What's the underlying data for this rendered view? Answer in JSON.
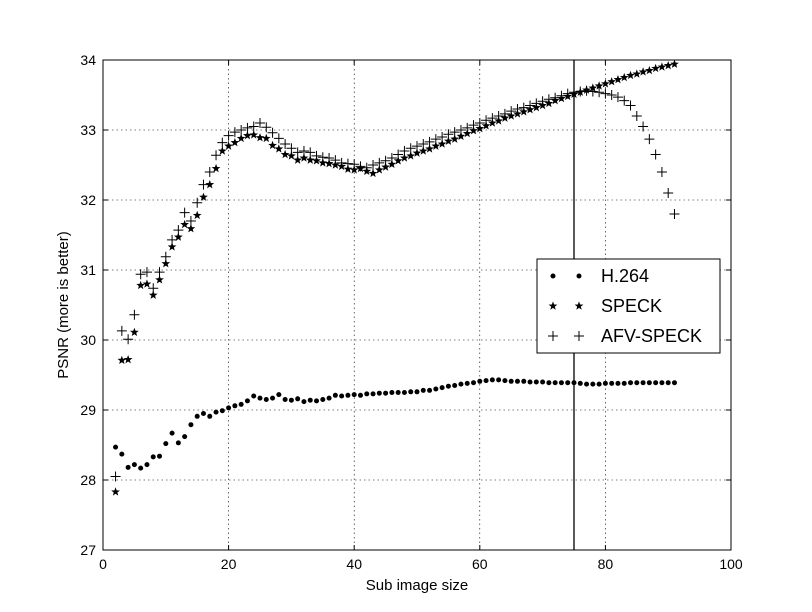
{
  "chart_data": {
    "type": "scatter",
    "title": "",
    "xlabel": "Sub image size",
    "ylabel": "PSNR (more is better)",
    "xlim": [
      0,
      100
    ],
    "ylim": [
      27,
      34
    ],
    "xticks": [
      "0",
      "20",
      "40",
      "60",
      "80",
      "100"
    ],
    "yticks": [
      "27",
      "28",
      "29",
      "30",
      "31",
      "32",
      "33",
      "34"
    ],
    "grid": true,
    "legend_position": "center-right",
    "vertical_line_x": 75,
    "x": [
      2,
      3,
      4,
      5,
      6,
      7,
      8,
      9,
      10,
      11,
      12,
      13,
      14,
      15,
      16,
      17,
      18,
      19,
      20,
      21,
      22,
      23,
      24,
      25,
      26,
      27,
      28,
      29,
      30,
      31,
      32,
      33,
      34,
      35,
      36,
      37,
      38,
      39,
      40,
      41,
      42,
      43,
      44,
      45,
      46,
      47,
      48,
      49,
      50,
      51,
      52,
      53,
      54,
      55,
      56,
      57,
      58,
      59,
      60,
      61,
      62,
      63,
      64,
      65,
      66,
      67,
      68,
      69,
      70,
      71,
      72,
      73,
      74,
      75,
      76,
      77,
      78,
      79,
      80,
      81,
      82,
      83,
      84,
      85,
      86,
      87,
      88,
      89,
      90,
      91
    ],
    "series": [
      {
        "name": "H.264",
        "marker": "dot",
        "values": [
          28.47,
          28.37,
          28.18,
          28.22,
          28.17,
          28.22,
          28.33,
          28.34,
          28.52,
          28.67,
          28.53,
          28.62,
          28.79,
          28.91,
          28.95,
          28.91,
          28.97,
          28.99,
          29.03,
          29.06,
          29.08,
          29.13,
          29.2,
          29.17,
          29.15,
          29.17,
          29.22,
          29.15,
          29.14,
          29.16,
          29.12,
          29.14,
          29.13,
          29.15,
          29.17,
          29.21,
          29.2,
          29.21,
          29.22,
          29.21,
          29.23,
          29.23,
          29.24,
          29.24,
          29.25,
          29.25,
          29.25,
          29.26,
          29.26,
          29.28,
          29.28,
          29.3,
          29.32,
          29.34,
          29.35,
          29.37,
          29.38,
          29.39,
          29.41,
          29.42,
          29.43,
          29.43,
          29.42,
          29.41,
          29.41,
          29.41,
          29.4,
          29.4,
          29.4,
          29.39,
          29.39,
          29.39,
          29.39,
          29.39,
          29.38,
          29.37,
          29.37,
          29.37,
          29.38,
          29.38,
          29.38,
          29.38,
          29.39,
          29.39,
          29.39,
          29.39,
          29.39,
          29.39,
          29.39,
          29.39
        ]
      },
      {
        "name": "SPECK",
        "marker": "star",
        "values": [
          27.83,
          29.71,
          29.72,
          30.11,
          30.78,
          30.8,
          30.64,
          30.86,
          31.09,
          31.33,
          31.47,
          31.65,
          31.59,
          31.78,
          32.04,
          32.22,
          32.45,
          32.7,
          32.77,
          32.82,
          32.88,
          32.92,
          32.93,
          32.89,
          32.88,
          32.78,
          32.73,
          32.65,
          32.63,
          32.57,
          32.6,
          32.57,
          32.56,
          32.53,
          32.52,
          32.5,
          32.48,
          32.44,
          32.43,
          32.45,
          32.41,
          32.38,
          32.43,
          32.47,
          32.51,
          32.56,
          32.6,
          32.63,
          32.67,
          32.7,
          32.73,
          32.77,
          32.8,
          32.84,
          32.87,
          32.91,
          32.95,
          32.99,
          33.02,
          33.06,
          33.1,
          33.13,
          33.17,
          33.2,
          33.23,
          33.26,
          33.29,
          33.32,
          33.35,
          33.38,
          33.42,
          33.45,
          33.48,
          33.51,
          33.54,
          33.57,
          33.6,
          33.63,
          33.66,
          33.69,
          33.72,
          33.75,
          33.78,
          33.8,
          33.83,
          33.85,
          33.88,
          33.9,
          33.92,
          33.94
        ]
      },
      {
        "name": "AFV-SPECK",
        "marker": "plus",
        "values": [
          28.05,
          30.13,
          30.01,
          30.36,
          30.94,
          30.97,
          30.74,
          30.97,
          31.19,
          31.43,
          31.57,
          31.82,
          31.7,
          31.96,
          32.22,
          32.4,
          32.64,
          32.82,
          32.92,
          32.97,
          33.0,
          33.03,
          33.05,
          33.1,
          33.04,
          32.96,
          32.88,
          32.8,
          32.74,
          32.68,
          32.7,
          32.68,
          32.63,
          32.61,
          32.6,
          32.57,
          32.53,
          32.52,
          32.51,
          32.48,
          32.46,
          32.5,
          32.53,
          32.56,
          32.6,
          32.65,
          32.7,
          32.74,
          32.77,
          32.8,
          32.83,
          32.87,
          32.9,
          32.94,
          32.97,
          33.0,
          33.03,
          33.07,
          33.1,
          33.14,
          33.17,
          33.2,
          33.23,
          33.27,
          33.3,
          33.32,
          33.35,
          33.38,
          33.41,
          33.44,
          33.46,
          33.49,
          33.52,
          33.54,
          33.55,
          33.56,
          33.55,
          33.54,
          33.52,
          33.5,
          33.47,
          33.42,
          33.35,
          33.2,
          33.05,
          32.87,
          32.65,
          32.4,
          32.1,
          31.8
        ]
      }
    ]
  }
}
